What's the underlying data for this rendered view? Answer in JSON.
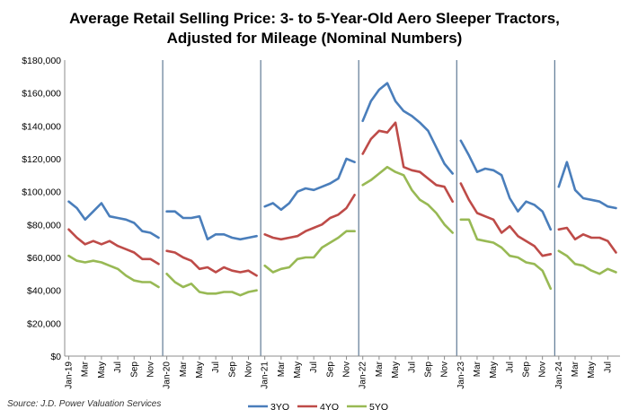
{
  "chart_data": {
    "type": "line",
    "title_line1": "Average Retail Selling Price: 3- to 5-Year-Old Aero Sleeper Tractors,",
    "title_line2": "Adjusted for Mileage (Nominal Numbers)",
    "source": "Source: J.D. Power Valuation Services",
    "ylim": [
      0,
      180000
    ],
    "yticks": [
      "$0",
      "$20,000",
      "$40,000",
      "$60,000",
      "$80,000",
      "$100,000",
      "$120,000",
      "$140,000",
      "$160,000",
      "$180,000"
    ],
    "xtick_labels": [
      "Jan-19",
      "Mar",
      "May",
      "Jul",
      "Sep",
      "Nov",
      "Jan-20",
      "Mar",
      "May",
      "Jul",
      "Sep",
      "Nov",
      "Jan-21",
      "Mar",
      "May",
      "Jul",
      "Sep",
      "Nov",
      "Jan-22",
      "Mar",
      "May",
      "Jul",
      "Sep",
      "Nov",
      "Jan-23",
      "Mar",
      "May",
      "Jul",
      "Sep",
      "Nov",
      "Jan-24",
      "Mar",
      "May",
      "Jul"
    ],
    "x": [
      "Jan-19",
      "Feb-19",
      "Mar-19",
      "Apr-19",
      "May-19",
      "Jun-19",
      "Jul-19",
      "Aug-19",
      "Sep-19",
      "Oct-19",
      "Nov-19",
      "Dec-19",
      "Jan-20",
      "Feb-20",
      "Mar-20",
      "Apr-20",
      "May-20",
      "Jun-20",
      "Jul-20",
      "Aug-20",
      "Sep-20",
      "Oct-20",
      "Nov-20",
      "Dec-20",
      "Jan-21",
      "Feb-21",
      "Mar-21",
      "Apr-21",
      "May-21",
      "Jun-21",
      "Jul-21",
      "Aug-21",
      "Sep-21",
      "Oct-21",
      "Nov-21",
      "Dec-21",
      "Jan-22",
      "Feb-22",
      "Mar-22",
      "Apr-22",
      "May-22",
      "Jun-22",
      "Jul-22",
      "Aug-22",
      "Sep-22",
      "Oct-22",
      "Nov-22",
      "Dec-22",
      "Jan-23",
      "Feb-23",
      "Mar-23",
      "Apr-23",
      "May-23",
      "Jun-23",
      "Jul-23",
      "Aug-23",
      "Sep-23",
      "Oct-23",
      "Nov-23",
      "Dec-23",
      "Jan-24",
      "Feb-24",
      "Mar-24",
      "Apr-24",
      "May-24",
      "Jun-24",
      "Jul-24",
      "Aug-24"
    ],
    "year_separators": [
      "Jan-20",
      "Jan-21",
      "Jan-22",
      "Jan-23",
      "Jan-24"
    ],
    "grid": false,
    "legend_position": "bottom",
    "series": [
      {
        "name": "3YO",
        "color": "#4a7ebb",
        "segments": [
          [
            94000,
            90000,
            83000,
            88000,
            93000,
            85000,
            84000,
            83000,
            81000,
            76000,
            75000,
            72000
          ],
          [
            88000,
            88000,
            84000,
            84000,
            85000,
            71000,
            74000,
            74000,
            72000,
            71000,
            72000,
            73000
          ],
          [
            91000,
            93000,
            89000,
            93000,
            100000,
            102000,
            101000,
            103000,
            105000,
            108000,
            120000,
            118000
          ],
          [
            143000,
            155000,
            162000,
            166000,
            155000,
            149000,
            146000,
            142000,
            137000,
            127000,
            117000,
            111000
          ],
          [
            131000,
            122000,
            112000,
            114000,
            113000,
            110000,
            96000,
            88000,
            94000,
            92000,
            88000,
            77000
          ],
          [
            103000,
            118000,
            101000,
            96000,
            95000,
            94000,
            91000,
            90000
          ]
        ]
      },
      {
        "name": "4YO",
        "color": "#be4b48",
        "segments": [
          [
            77000,
            72000,
            68000,
            70000,
            68000,
            70000,
            67000,
            65000,
            63000,
            59000,
            59000,
            56000
          ],
          [
            64000,
            63000,
            60000,
            58000,
            53000,
            54000,
            51000,
            54000,
            52000,
            51000,
            52000,
            49000
          ],
          [
            74000,
            72000,
            71000,
            72000,
            73000,
            76000,
            78000,
            80000,
            84000,
            86000,
            90000,
            98000
          ],
          [
            123000,
            132000,
            137000,
            136000,
            142000,
            115000,
            113000,
            112000,
            108000,
            104000,
            103000,
            94000
          ],
          [
            105000,
            95000,
            87000,
            85000,
            83000,
            75000,
            79000,
            73000,
            70000,
            67000,
            61000,
            62000
          ],
          [
            77000,
            78000,
            71000,
            74000,
            72000,
            72000,
            70000,
            63000
          ]
        ]
      },
      {
        "name": "5YO",
        "color": "#98b954",
        "segments": [
          [
            61000,
            58000,
            57000,
            58000,
            57000,
            55000,
            53000,
            49000,
            46000,
            45000,
            45000,
            42000
          ],
          [
            50000,
            45000,
            42000,
            44000,
            39000,
            38000,
            38000,
            39000,
            39000,
            37000,
            39000,
            40000
          ],
          [
            55000,
            51000,
            53000,
            54000,
            59000,
            60000,
            60000,
            66000,
            69000,
            72000,
            76000,
            76000
          ],
          [
            104000,
            107000,
            111000,
            115000,
            112000,
            110000,
            101000,
            95000,
            92000,
            87000,
            80000,
            75000
          ],
          [
            83000,
            83000,
            71000,
            70000,
            69000,
            66000,
            61000,
            60000,
            57000,
            56000,
            52000,
            41000
          ],
          [
            64000,
            61000,
            56000,
            55000,
            52000,
            50000,
            53000,
            51000
          ]
        ]
      }
    ]
  }
}
